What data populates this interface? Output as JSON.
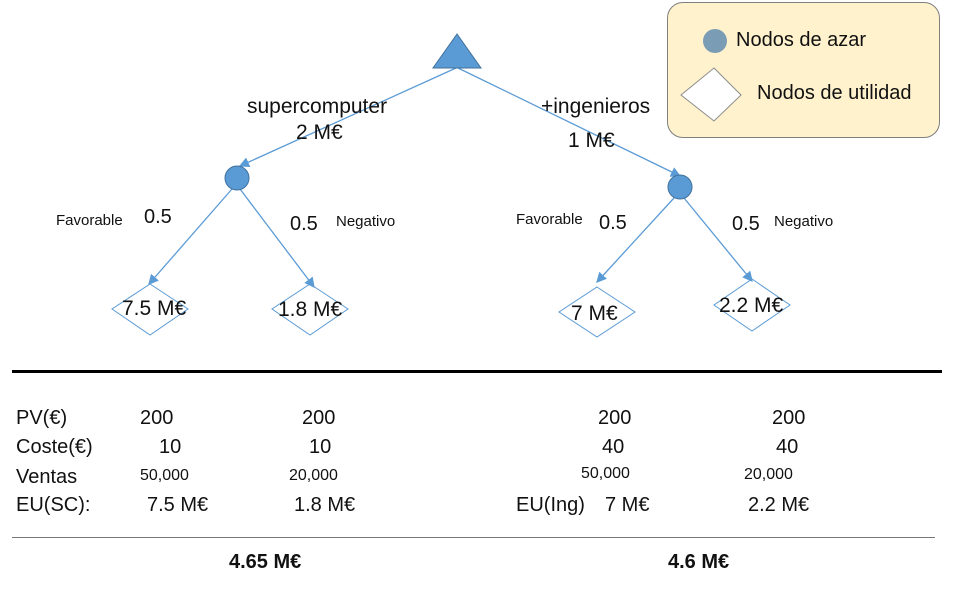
{
  "colors": {
    "node_fill": "#5b9bd5",
    "edge": "#5b9bd5",
    "legend_bg": "#fff2cc",
    "legend_chance": "#7a9cb4"
  },
  "legend": {
    "chance_label": "Nodos de azar",
    "utility_label": "Nodos de utilidad"
  },
  "tree": {
    "left": {
      "option": "supercomputer",
      "cost": "2 M€",
      "fav_label": "Favorable",
      "fav_prob": "0.5",
      "neg_prob": "0.5",
      "neg_label": "Negativo",
      "fav_utility": "7.5 M€",
      "neg_utility": "1.8 M€"
    },
    "right": {
      "option": "+ingenieros",
      "cost": "1 M€",
      "fav_label": "Favorable",
      "fav_prob": "0.5",
      "neg_prob": "0.5",
      "neg_label": "Negativo",
      "fav_utility": "7 M€",
      "neg_utility": "2.2 M€"
    }
  },
  "table": {
    "row_labels": {
      "pv": "PV(€)",
      "coste": "Coste(€)",
      "ventas": "Ventas",
      "eu": "EU(SC):"
    },
    "eu_ing_label": "EU(Ing)",
    "pv": [
      "200",
      "200",
      "200",
      "200"
    ],
    "coste": [
      "10",
      "10",
      "40",
      "40"
    ],
    "ventas": [
      "50,000",
      "20,000",
      "50,000",
      "20,000"
    ],
    "eu": [
      "7.5 M€",
      "1.8 M€",
      "7 M€",
      "2.2 M€"
    ]
  },
  "totals": {
    "left": "4.65 M€",
    "right": "4.6 M€"
  }
}
